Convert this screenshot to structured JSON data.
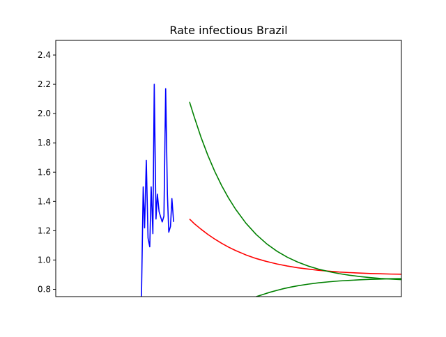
{
  "chart_data": {
    "type": "line",
    "title": "Rate infectious Brazil",
    "xlabel": "",
    "ylabel": "",
    "xlim": [
      0,
      100
    ],
    "ylim": [
      0.75,
      2.5
    ],
    "yticks": [
      0.8,
      1.0,
      1.2,
      1.4,
      1.6,
      1.8,
      2.0,
      2.2,
      2.4
    ],
    "ytick_labels": [
      "0.8",
      "1.0",
      "1.2",
      "1.4",
      "1.6",
      "1.8",
      "2.0",
      "2.2",
      "2.4"
    ],
    "xticks_visible": false,
    "grid": false,
    "legend": "none",
    "series": [
      {
        "color": "#0000ff",
        "x": [
          24.8,
          25.3,
          25.7,
          26.2,
          26.7,
          27.2,
          27.6,
          28.1,
          28.5,
          29.0,
          29.4,
          29.9,
          30.4,
          30.8,
          31.3,
          31.8,
          32.3,
          32.7,
          33.2,
          33.6,
          34.1,
          34.5,
          35.0,
          35.5,
          35.9,
          36.4,
          36.8,
          37.3,
          37.8,
          38.2,
          38.7
        ],
        "values": [
          0.75,
          1.5,
          1.22,
          1.68,
          1.15,
          1.09,
          1.5,
          1.18,
          2.2,
          1.28,
          1.45,
          1.33,
          1.29,
          1.26,
          1.3,
          2.17,
          1.45,
          1.19,
          1.23,
          1.42,
          1.26,
          null,
          null,
          null,
          null,
          null,
          null,
          null,
          null,
          null,
          null
        ]
      },
      {
        "color": "#ff0000",
        "x": [
          38.7,
          40,
          42,
          44,
          46,
          48,
          50,
          52,
          55,
          58,
          61,
          64,
          67,
          70,
          73,
          76,
          79,
          82,
          85,
          88,
          91,
          94,
          97,
          100
        ],
        "values": [
          1.28,
          1.25,
          1.211,
          1.175,
          1.143,
          1.114,
          1.088,
          1.065,
          1.035,
          1.01,
          0.99,
          0.973,
          0.959,
          0.947,
          0.938,
          0.93,
          0.924,
          0.918,
          0.914,
          0.911,
          0.908,
          0.906,
          0.904,
          0.903
        ]
      },
      {
        "color": "#008000",
        "x": [
          38.7,
          40,
          42,
          44,
          46,
          48,
          50,
          52,
          55,
          58,
          61,
          64,
          67,
          70,
          73,
          76,
          79,
          82,
          85,
          88,
          91,
          94,
          97,
          100
        ],
        "values": [
          2.08,
          1.982,
          1.84,
          1.715,
          1.605,
          1.508,
          1.423,
          1.348,
          1.252,
          1.174,
          1.111,
          1.06,
          1.019,
          0.986,
          0.959,
          0.938,
          0.921,
          0.907,
          0.896,
          0.887,
          0.88,
          0.874,
          0.87,
          0.866
        ]
      },
      {
        "color": "#008000",
        "x": [
          58,
          60,
          62,
          64,
          66,
          68,
          70,
          73,
          76,
          79,
          82,
          85,
          88,
          91,
          94,
          97,
          100
        ],
        "values": [
          0.75,
          0.765,
          0.78,
          0.793,
          0.805,
          0.815,
          0.824,
          0.835,
          0.844,
          0.851,
          0.857,
          0.861,
          0.865,
          0.868,
          0.87,
          0.872,
          0.873
        ]
      }
    ]
  }
}
